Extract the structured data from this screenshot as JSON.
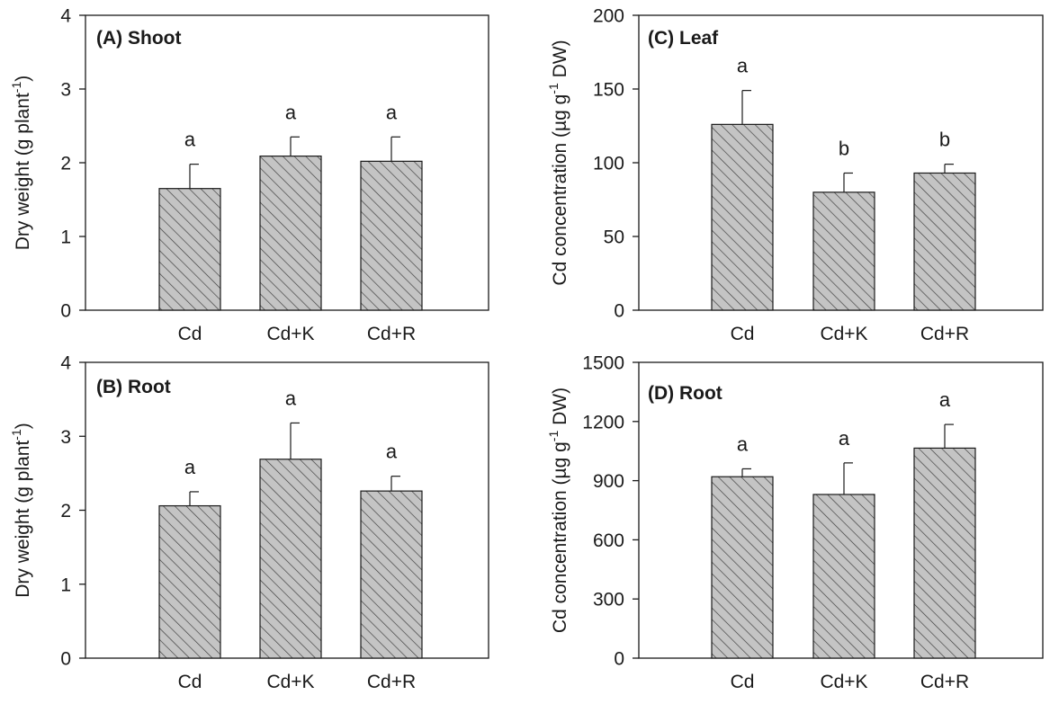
{
  "chart_data": [
    {
      "id": "A",
      "type": "bar",
      "title": "(A) Shoot",
      "ylabel_main": "Dry weight (g plant",
      "ylabel_sup": "-1",
      "ylabel_tail": ")",
      "categories": [
        "Cd",
        "Cd+K",
        "Cd+R"
      ],
      "values": [
        1.65,
        2.09,
        2.02
      ],
      "errors": [
        0.33,
        0.26,
        0.33
      ],
      "significance": [
        "a",
        "a",
        "a"
      ],
      "ylim": [
        0,
        4
      ],
      "yticks": [
        0,
        1,
        2,
        3,
        4
      ],
      "ytick_labels": [
        "0",
        "1",
        "2",
        "3",
        "4"
      ]
    },
    {
      "id": "B",
      "type": "bar",
      "title": "(B) Root",
      "ylabel_main": "Dry weight (g plant",
      "ylabel_sup": "-1",
      "ylabel_tail": ")",
      "categories": [
        "Cd",
        "Cd+K",
        "Cd+R"
      ],
      "values": [
        2.06,
        2.69,
        2.26
      ],
      "errors": [
        0.19,
        0.49,
        0.2
      ],
      "significance": [
        "a",
        "a",
        "a"
      ],
      "ylim": [
        0,
        4
      ],
      "yticks": [
        0,
        1,
        2,
        3,
        4
      ],
      "ytick_labels": [
        "0",
        "1",
        "2",
        "3",
        "4"
      ]
    },
    {
      "id": "C",
      "type": "bar",
      "title": "(C) Leaf",
      "ylabel_main": "Cd concentration (µg g",
      "ylabel_sup": "-1",
      "ylabel_tail": " DW)",
      "categories": [
        "Cd",
        "Cd+K",
        "Cd+R"
      ],
      "values": [
        126,
        80,
        93
      ],
      "errors": [
        23,
        13,
        6
      ],
      "significance": [
        "a",
        "b",
        "b"
      ],
      "ylim": [
        0,
        200
      ],
      "yticks": [
        0,
        50,
        100,
        150,
        200
      ],
      "ytick_labels": [
        "0",
        "50",
        "100",
        "150",
        "200"
      ]
    },
    {
      "id": "D",
      "type": "bar",
      "title": "(D) Root",
      "ylabel_main": "Cd concentration (µg g",
      "ylabel_sup": "-1",
      "ylabel_tail": " DW)",
      "categories": [
        "Cd",
        "Cd+K",
        "Cd+R"
      ],
      "values": [
        920,
        830,
        1065
      ],
      "errors": [
        40,
        160,
        120
      ],
      "significance": [
        "a",
        "a",
        "a"
      ],
      "ylim": [
        0,
        1500
      ],
      "yticks": [
        0,
        300,
        600,
        900,
        1200,
        1500
      ],
      "ytick_labels": [
        "0",
        "300",
        "600",
        "900",
        "1200",
        "1500"
      ]
    }
  ],
  "colors": {
    "bar_fill": "#c4c4c4",
    "hatch": "#3a3a3a",
    "axis": "#1a1a1a"
  }
}
